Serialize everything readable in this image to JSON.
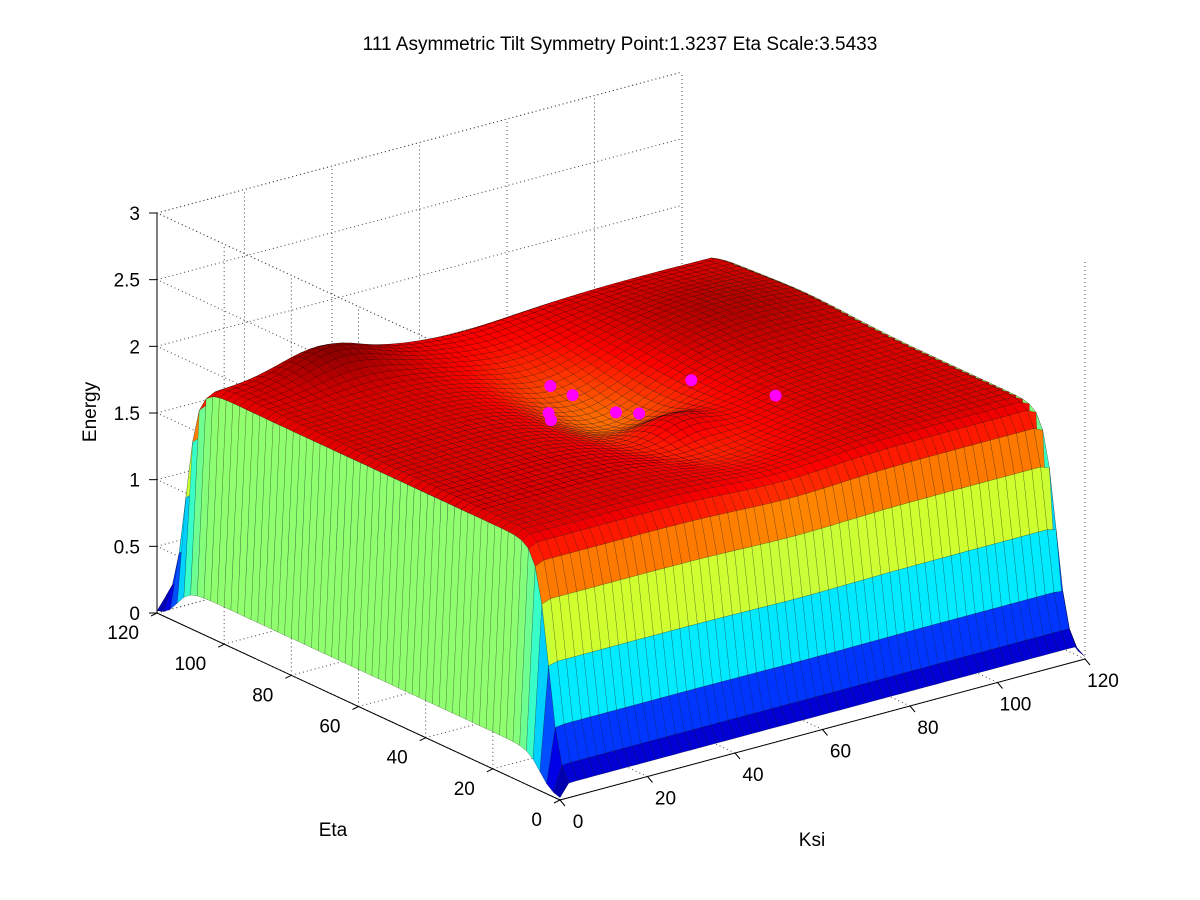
{
  "chart_data": {
    "type": "surface",
    "title": "111 Asymmetric Tilt   Symmetry Point:1.3237   Eta Scale:3.5433",
    "xlabel": "Ksi",
    "ylabel": "Eta",
    "zlabel": "Energy",
    "xlim": [
      0,
      120
    ],
    "ylim": [
      0,
      120
    ],
    "zlim": [
      0,
      3
    ],
    "xticks": [
      "0",
      "20",
      "40",
      "60",
      "80",
      "100",
      "120"
    ],
    "yticks": [
      "0",
      "20",
      "40",
      "60",
      "80",
      "100",
      "120"
    ],
    "zticks": [
      "0",
      "0.5",
      "1",
      "1.5",
      "2",
      "2.5",
      "3"
    ],
    "grid": true,
    "colormap": "jet",
    "surface": {
      "plateau_energy": 1.82,
      "edge_energy": 0.05,
      "trough_center_ksi": 60,
      "trough_depth": 0.3,
      "ridge_peak_energy": 2.0
    },
    "marker_color": "#ff00ff",
    "points": [
      {
        "ksi": 50,
        "eta": 68,
        "energy": 1.87
      },
      {
        "ksi": 52,
        "eta": 64,
        "energy": 1.83
      },
      {
        "ksi": 45,
        "eta": 62,
        "energy": 1.78
      },
      {
        "ksi": 44,
        "eta": 60,
        "energy": 1.76
      },
      {
        "ksi": 55,
        "eta": 55,
        "energy": 1.78
      },
      {
        "ksi": 58,
        "eta": 52,
        "energy": 1.78
      },
      {
        "ksi": 73,
        "eta": 56,
        "energy": 1.85
      },
      {
        "ksi": 80,
        "eta": 40,
        "energy": 1.86
      }
    ]
  }
}
